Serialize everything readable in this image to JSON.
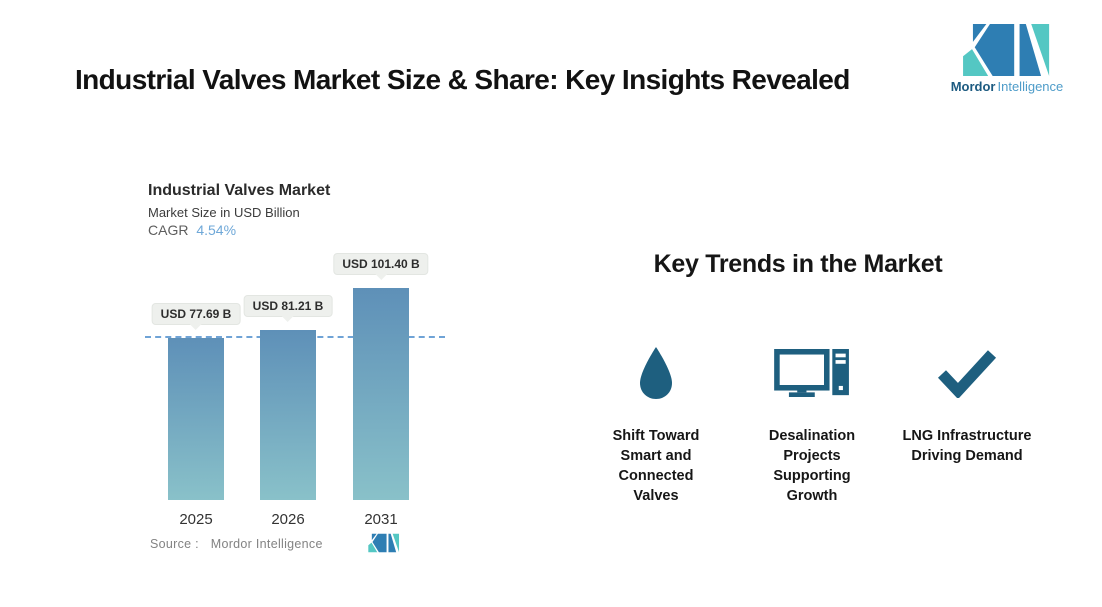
{
  "page": {
    "title": "Industrial Valves Market Size & Share: Key Insights Revealed"
  },
  "brand": {
    "name_primary": "Mordor",
    "name_secondary": "Intelligence",
    "colors": {
      "blue": "#2e7eb3",
      "teal": "#54c7c3",
      "dark_text": "#1c5a80",
      "light_text": "#4e9cc9"
    }
  },
  "chart": {
    "title": "Industrial Valves Market",
    "subtitle": "Market Size in USD Billion",
    "cagr_label": "CAGR",
    "cagr_value": "4.54%",
    "source_label": "Source :",
    "source_value": "Mordor Intelligence"
  },
  "chart_data": {
    "type": "bar",
    "title": "Industrial Valves Market",
    "subtitle": "Market Size in USD Billion",
    "cagr_percent": 4.54,
    "categories": [
      "2025",
      "2026",
      "2031"
    ],
    "values": [
      77.69,
      81.21,
      101.4
    ],
    "value_labels": [
      "USD 77.69 B",
      "USD 81.21 B",
      "USD 101.40 B"
    ],
    "unit": "USD Billion",
    "ylim": [
      0,
      105
    ],
    "grid": false,
    "legend": false,
    "reference_line": {
      "at_value": 77.69,
      "style": "dashed",
      "color": "#6fa3d6"
    },
    "bar_gradient_top": "#5e90b8",
    "bar_gradient_bottom": "#89c1c9"
  },
  "trends": {
    "heading": "Key Trends in the Market",
    "icon_color": "#1e5f7f",
    "items": [
      {
        "icon": "water-drop-icon",
        "label": "Shift Toward Smart and Connected Valves"
      },
      {
        "icon": "desktop-computer-icon",
        "label": "Desalination Projects Supporting Growth"
      },
      {
        "icon": "checkmark-icon",
        "label": "LNG Infrastructure Driving Demand"
      }
    ]
  }
}
